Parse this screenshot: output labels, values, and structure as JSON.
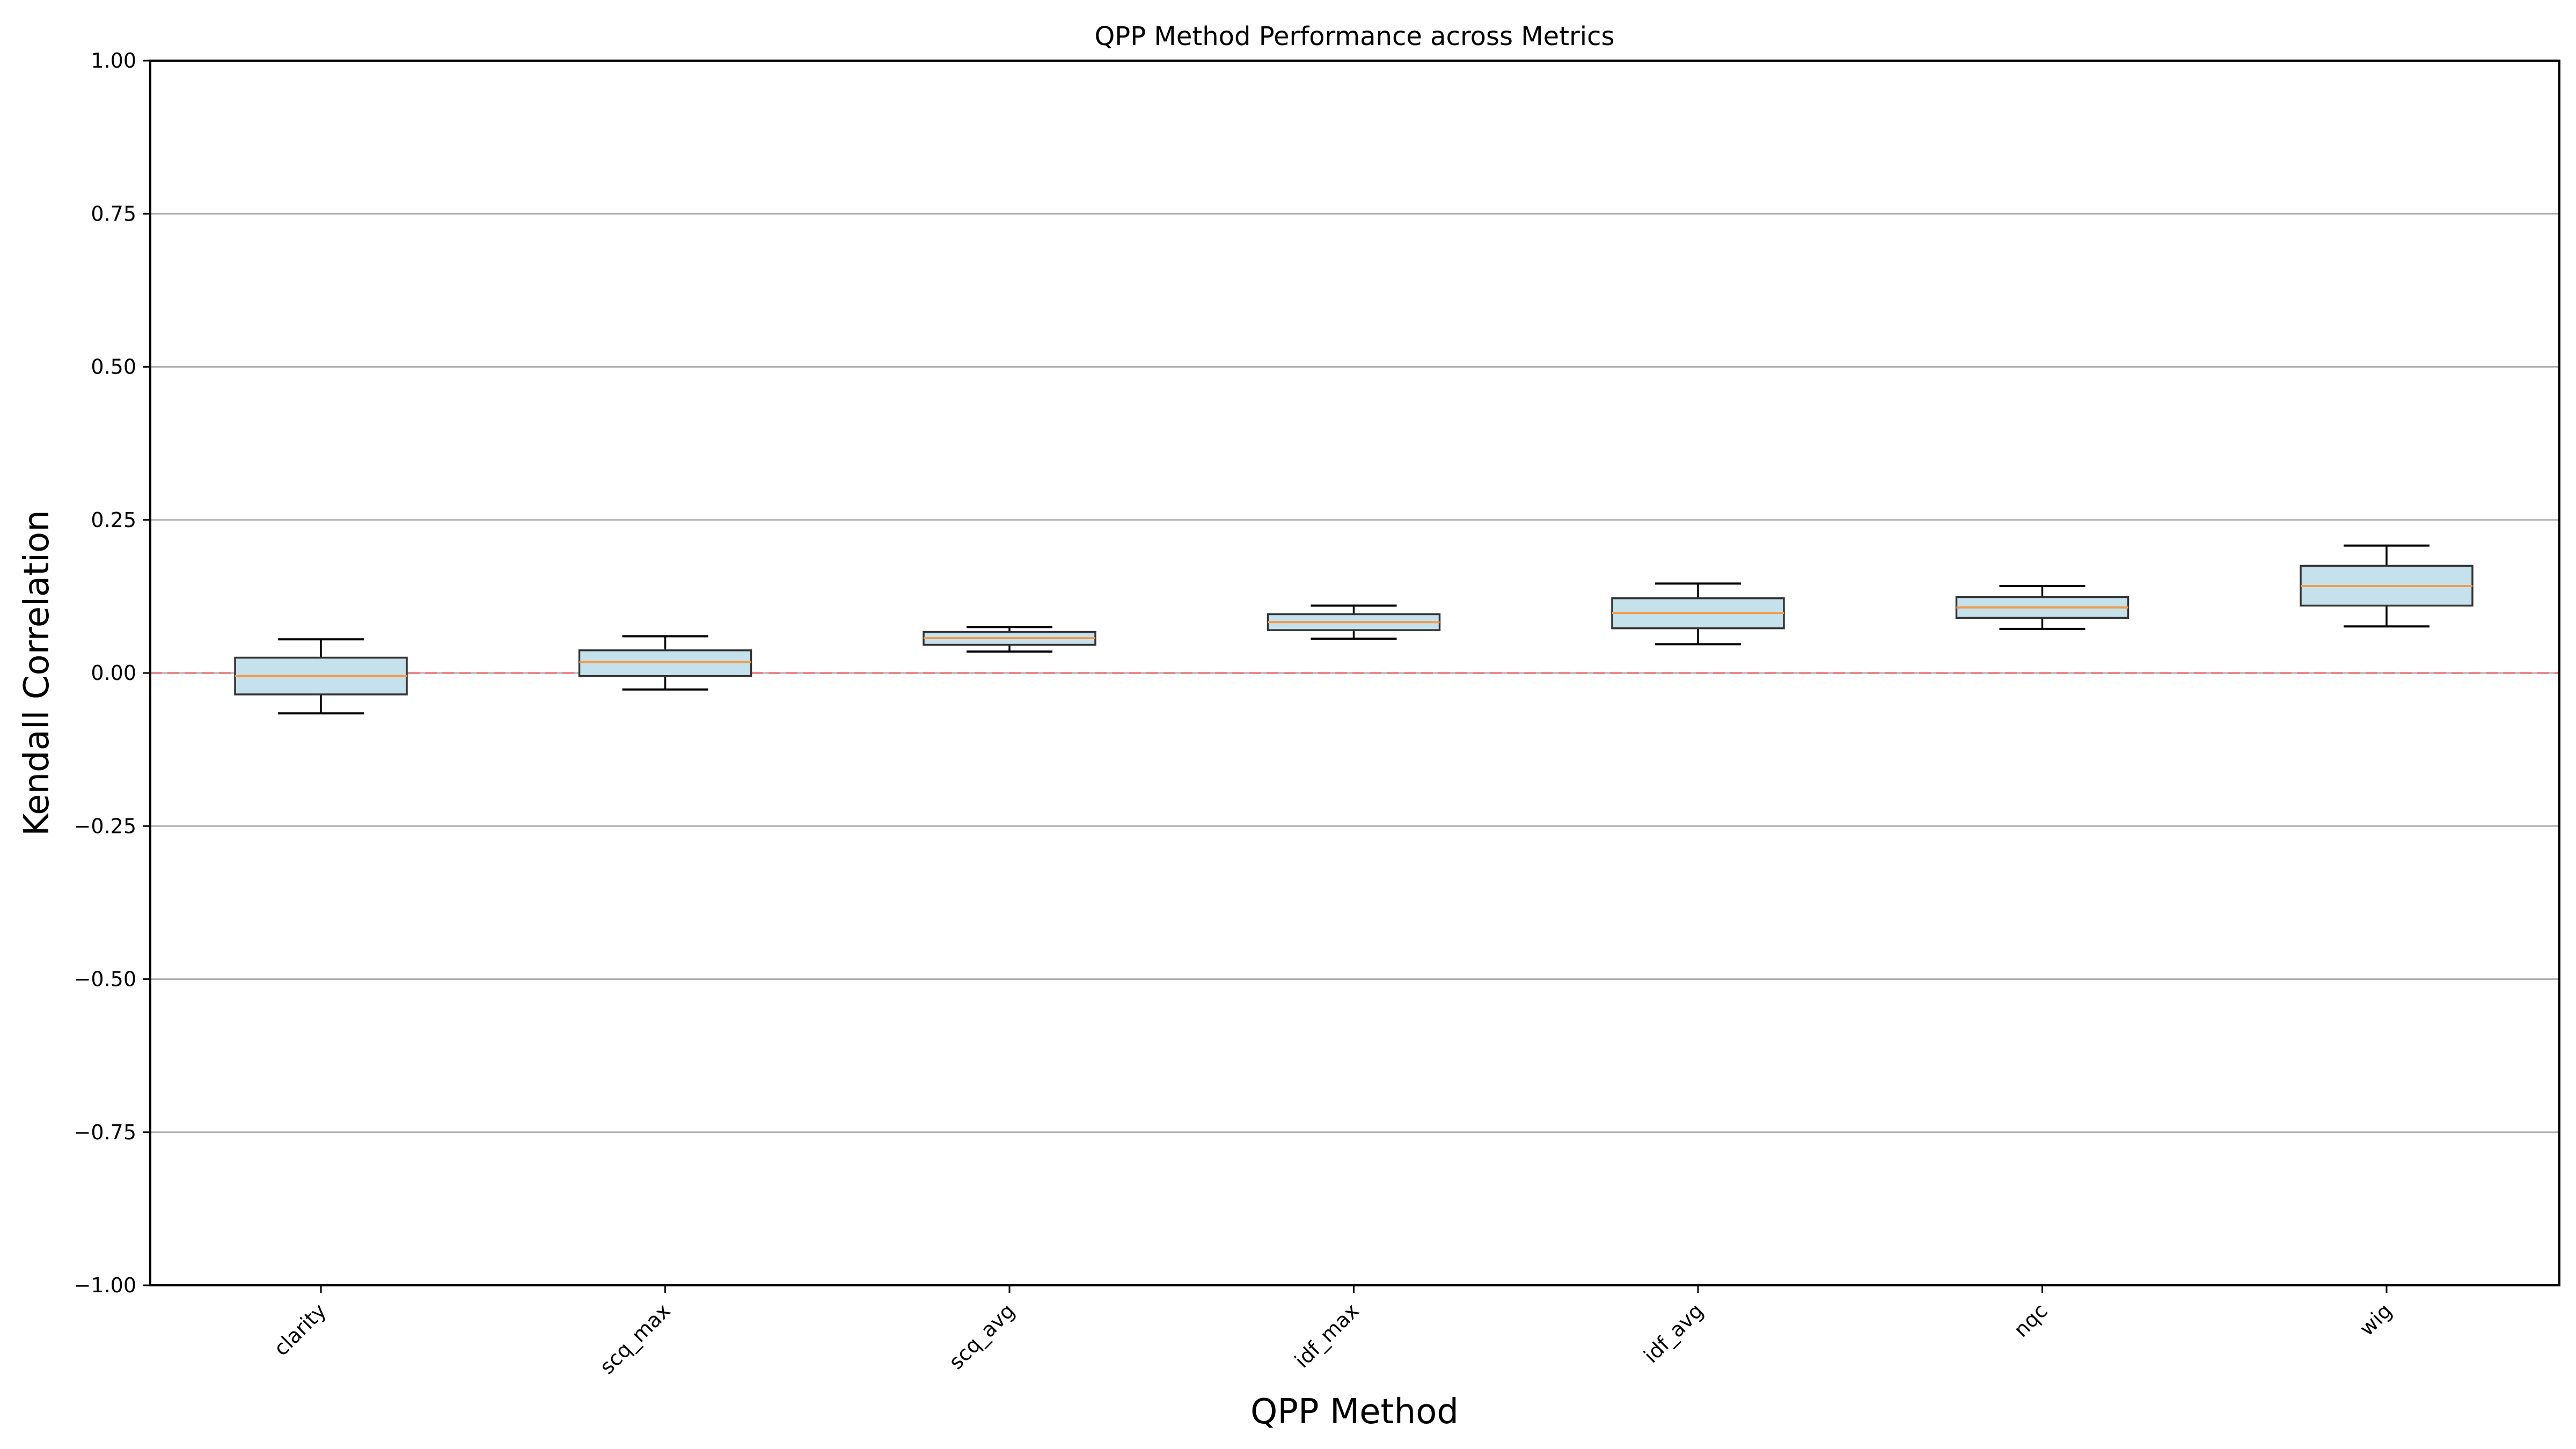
{
  "chart_data": {
    "type": "box",
    "title": "QPP Method Performance across Metrics",
    "xlabel": "QPP Method",
    "ylabel": "Kendall Correlation",
    "ylim": [
      -1.0,
      1.0
    ],
    "yticks": [
      1.0,
      0.75,
      0.5,
      0.25,
      0.0,
      -0.25,
      -0.5,
      -0.75,
      -1.0
    ],
    "ytick_labels": [
      "1.00",
      "0.75",
      "0.50",
      "0.25",
      "0.00",
      "−0.25",
      "−0.50",
      "−0.75",
      "−1.00"
    ],
    "grid": "horizontal",
    "reference_line": {
      "y": 0.0,
      "color": "#e8898e",
      "style": "dashed"
    },
    "box_fill": "#c5e1eb",
    "median_color": "#f29b4a",
    "categories": [
      "clarity",
      "scq_max",
      "scq_avg",
      "idf_max",
      "idf_avg",
      "nqc",
      "wig"
    ],
    "boxes": [
      {
        "label": "clarity",
        "whislo": -0.066,
        "q1": -0.035,
        "med": -0.005,
        "q3": 0.025,
        "whishi": 0.055
      },
      {
        "label": "scq_max",
        "whislo": -0.027,
        "q1": -0.005,
        "med": 0.018,
        "q3": 0.037,
        "whishi": 0.06
      },
      {
        "label": "scq_avg",
        "whislo": 0.035,
        "q1": 0.046,
        "med": 0.057,
        "q3": 0.067,
        "whishi": 0.075
      },
      {
        "label": "idf_max",
        "whislo": 0.056,
        "q1": 0.07,
        "med": 0.083,
        "q3": 0.096,
        "whishi": 0.11
      },
      {
        "label": "idf_avg",
        "whislo": 0.047,
        "q1": 0.073,
        "med": 0.098,
        "q3": 0.122,
        "whishi": 0.146
      },
      {
        "label": "nqc",
        "whislo": 0.072,
        "q1": 0.09,
        "med": 0.107,
        "q3": 0.124,
        "whishi": 0.142
      },
      {
        "label": "wig",
        "whislo": 0.076,
        "q1": 0.11,
        "med": 0.142,
        "q3": 0.175,
        "whishi": 0.208
      }
    ]
  }
}
